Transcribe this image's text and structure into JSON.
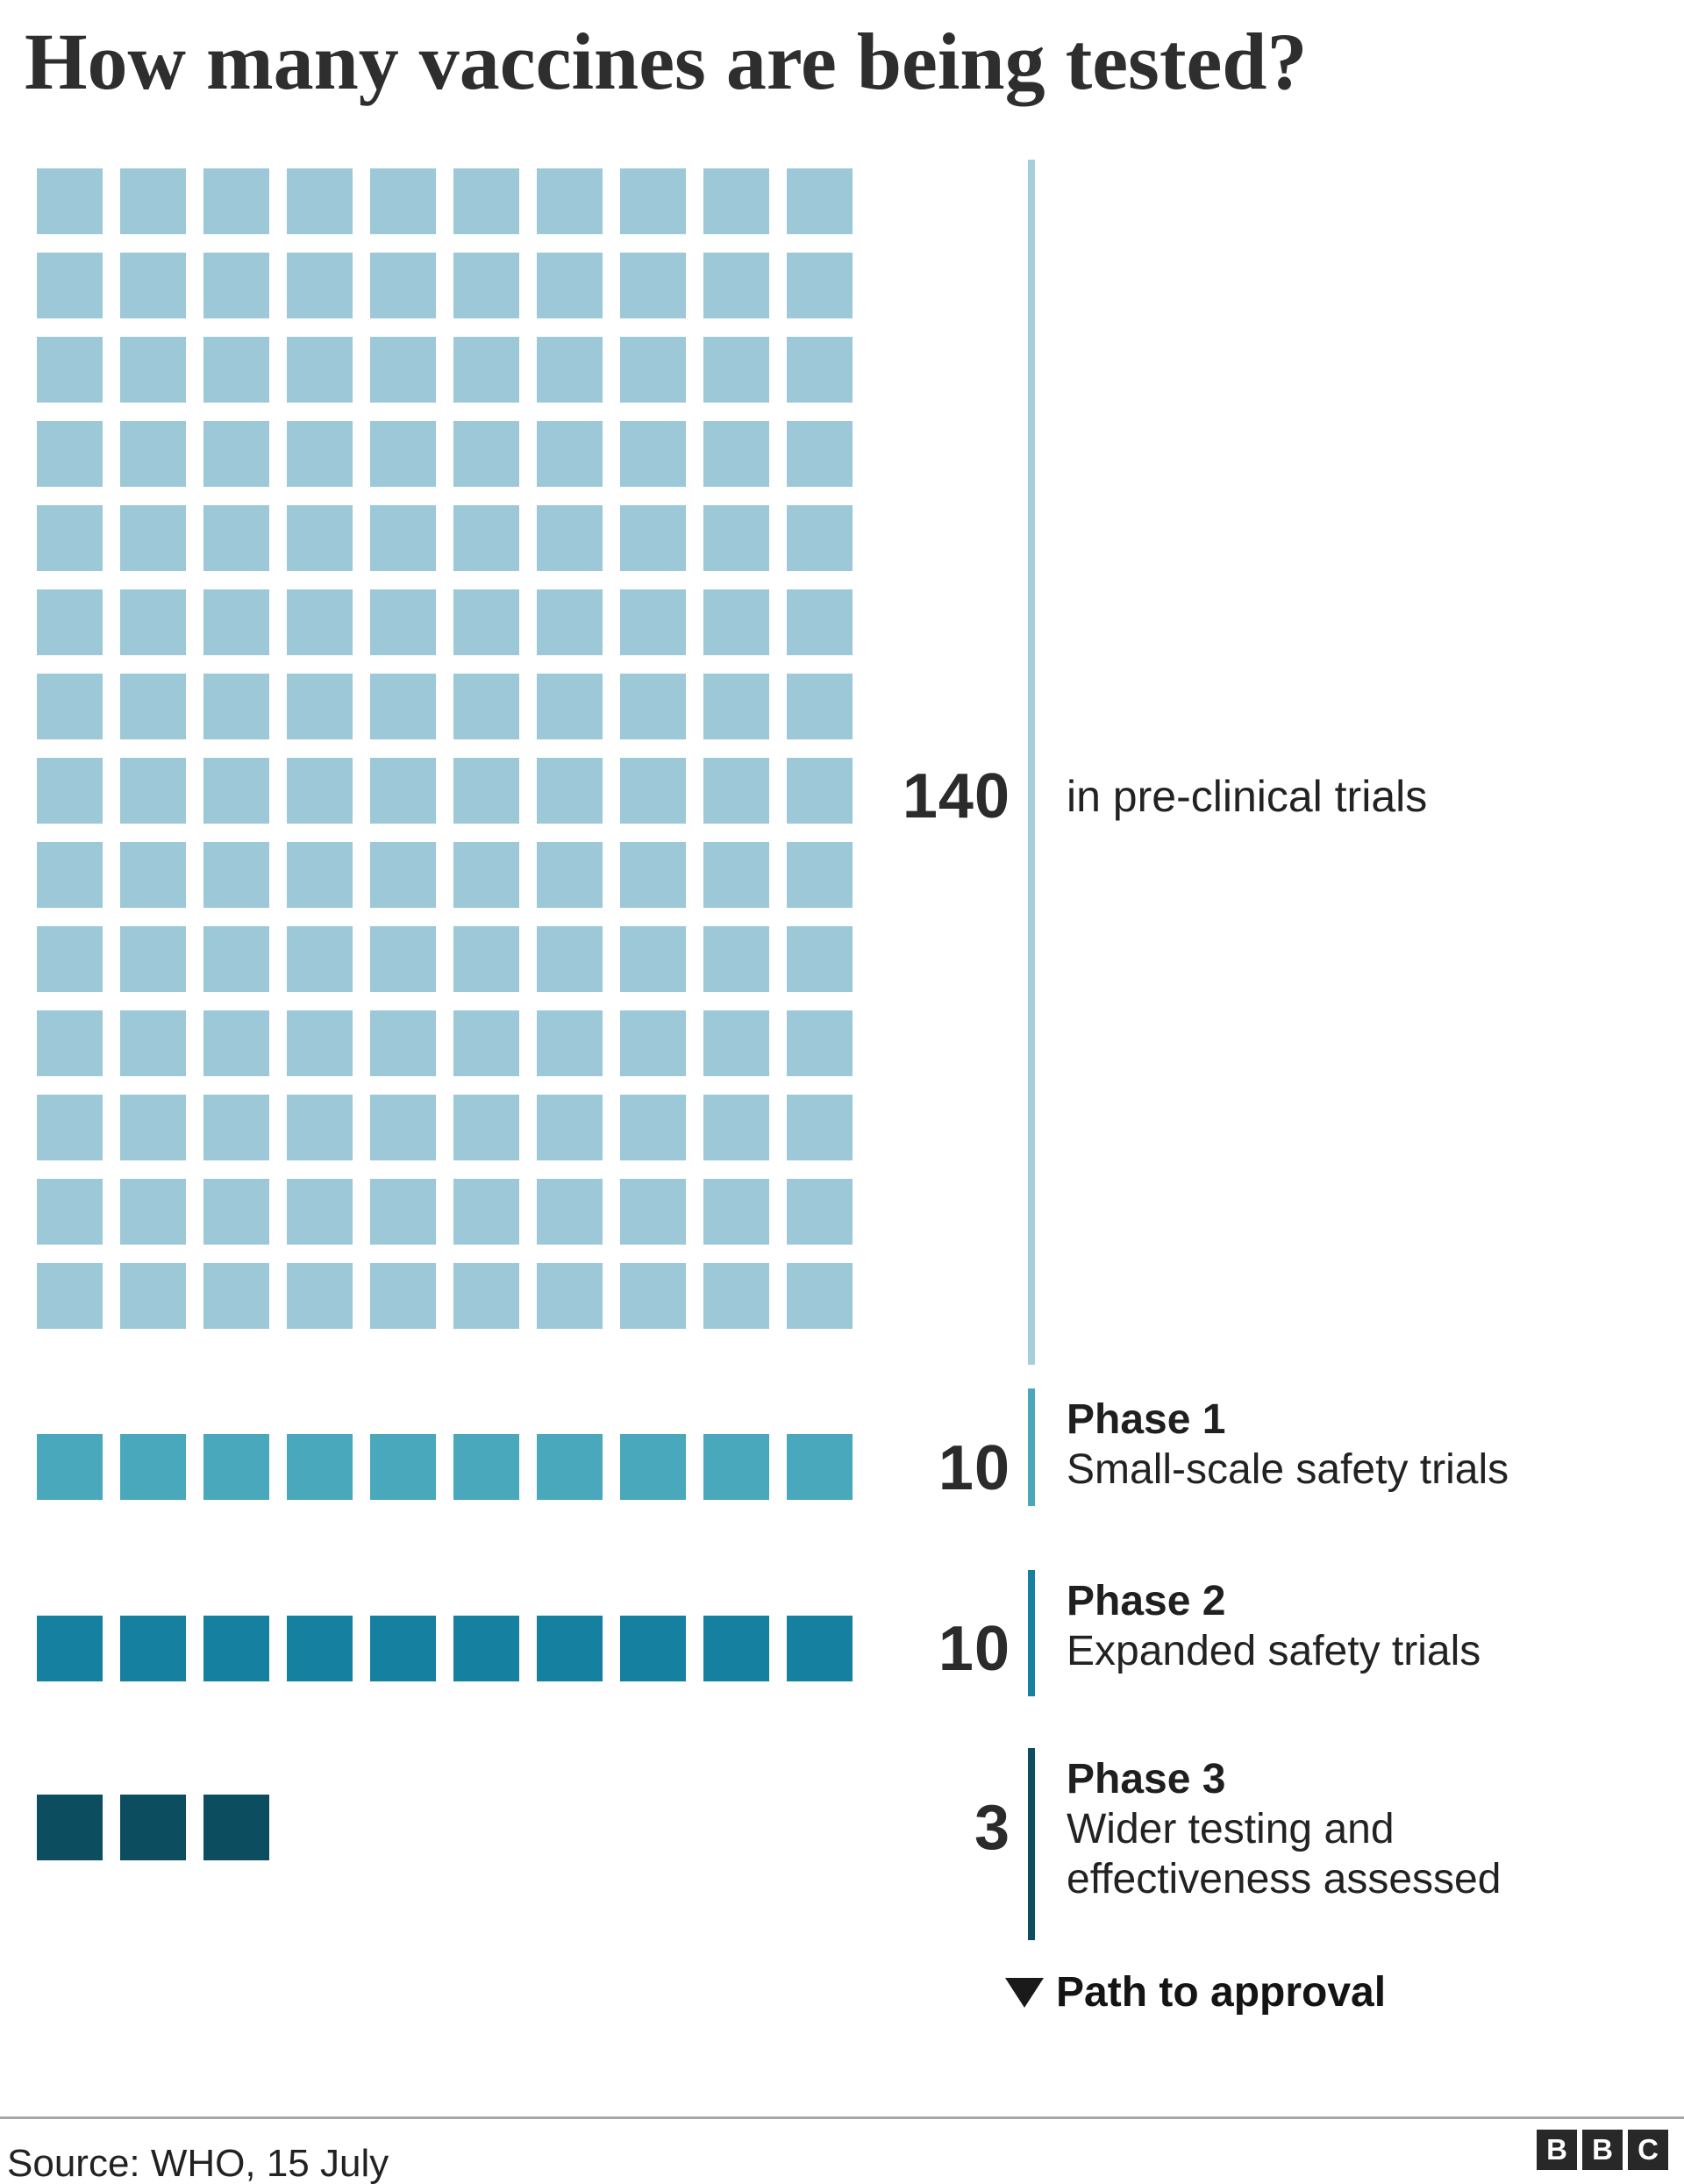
{
  "title": "How many vaccines are being tested?",
  "chart_data": {
    "type": "waffle",
    "title": "How many vaccines are being tested?",
    "square_unit": 1,
    "stages": [
      {
        "count": 140,
        "label": "in pre-clinical trials",
        "color": "#9CC8D7",
        "line_color": "#A6CEDB",
        "columns": 10,
        "rows": 14
      },
      {
        "count": 10,
        "name": "Phase 1",
        "description": "Small-scale safety trials",
        "color": "#4AA8BC",
        "line_color": "#4AA8BC",
        "columns": 10
      },
      {
        "count": 10,
        "name": "Phase 2",
        "description": "Expanded safety trials",
        "color": "#1580A0",
        "line_color": "#1580A0",
        "columns": 10
      },
      {
        "count": 3,
        "name": "Phase 3",
        "description": "Wider testing and effectiveness assessed",
        "color": "#0C4D60",
        "line_color": "#0C4D60",
        "columns": 10
      }
    ],
    "annotation": "Path to approval",
    "legend_position": "right",
    "grid": false
  },
  "footer": {
    "source": "Source: WHO, 15 July",
    "bbc_logo": [
      "B",
      "B",
      "C"
    ]
  }
}
